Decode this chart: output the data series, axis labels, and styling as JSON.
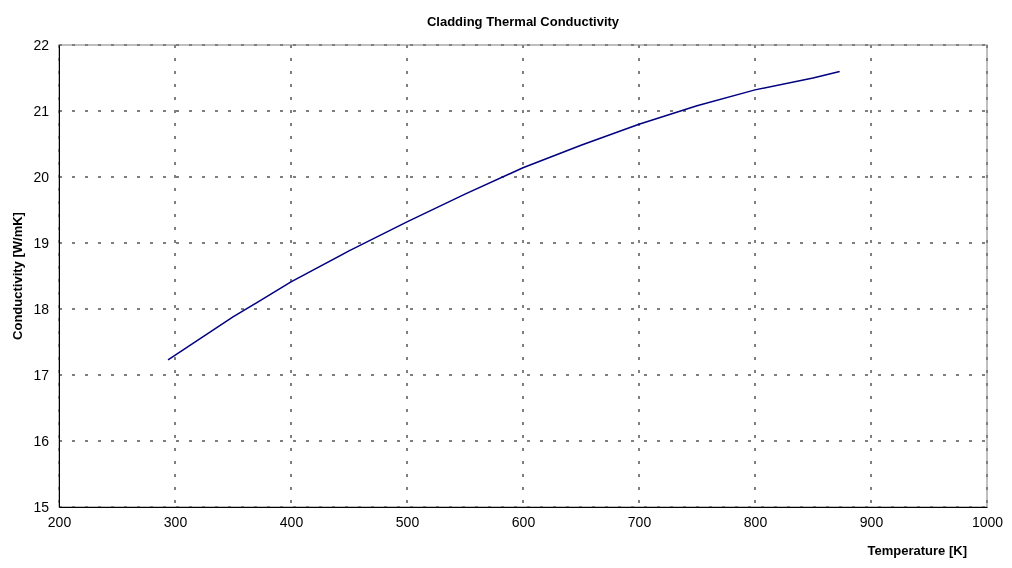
{
  "chart_data": {
    "type": "line",
    "title": "Cladding Thermal Conductivity",
    "xlabel": "Temperature  [K]",
    "ylabel": "Conductivity  [W/mK]",
    "x": [
      294,
      350,
      400,
      450,
      500,
      550,
      600,
      650,
      700,
      750,
      800,
      850,
      873
    ],
    "series": [
      {
        "color": "#000080",
        "values": [
          17.23,
          17.88,
          18.41,
          18.88,
          19.32,
          19.74,
          20.14,
          20.48,
          20.8,
          21.08,
          21.32,
          21.5,
          21.6
        ]
      }
    ],
    "xlim": [
      200,
      1000
    ],
    "xticks": [
      200,
      300,
      400,
      500,
      600,
      700,
      800,
      900,
      1000
    ],
    "ylim": [
      15,
      22
    ],
    "yticks": [
      15,
      16,
      17,
      18,
      19,
      20,
      21,
      22
    ],
    "grid": true,
    "marker": "none",
    "line_style": "solid"
  }
}
